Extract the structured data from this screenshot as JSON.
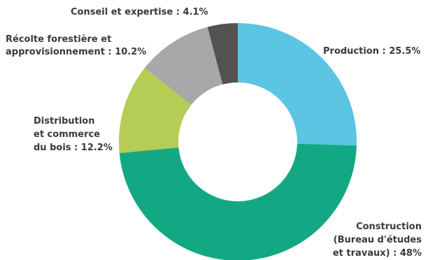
{
  "chart_data": {
    "type": "pie",
    "donut": true,
    "slices": [
      {
        "label_lines": [
          "Production : 25.5%"
        ],
        "value": 25.5,
        "color": "#5bc5e3"
      },
      {
        "label_lines": [
          "Construction",
          "(Bureau d'études",
          "et travaux) : 48%"
        ],
        "value": 48,
        "color": "#12a884"
      },
      {
        "label_lines": [
          "Distribution",
          "et commerce",
          "du bois : 12.2%"
        ],
        "value": 12.2,
        "color": "#b5cc55"
      },
      {
        "label_lines": [
          "Récolte forestière et",
          "approvisionnement : 10.2%"
        ],
        "value": 10.2,
        "color": "#a8a8a8"
      },
      {
        "label_lines": [
          "Conseil et expertise : 4.1%"
        ],
        "value": 4.1,
        "color": "#525252"
      }
    ]
  }
}
